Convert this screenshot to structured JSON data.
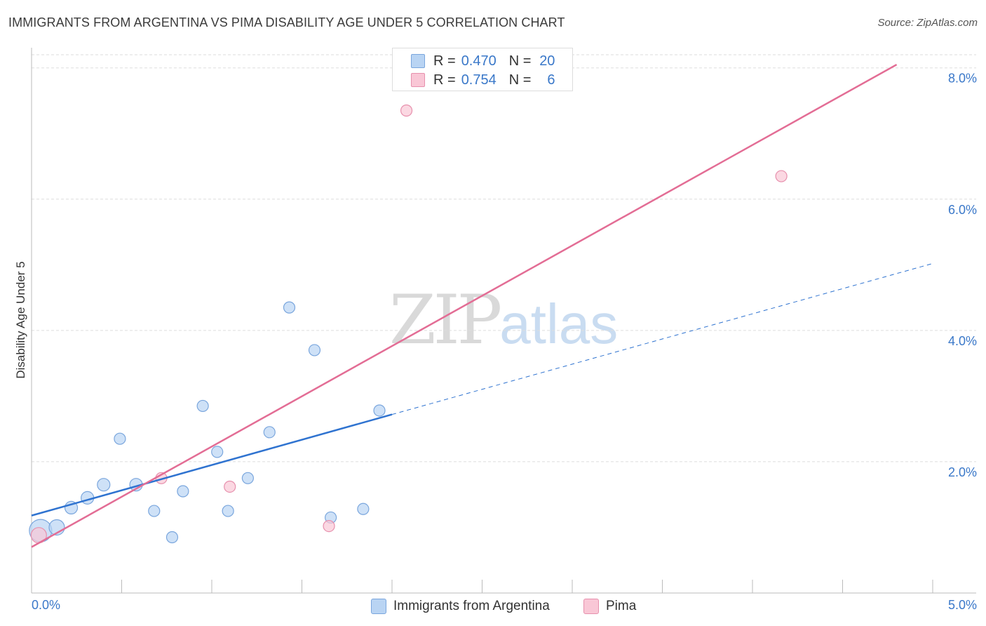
{
  "header": {
    "title": "IMMIGRANTS FROM ARGENTINA VS PIMA DISABILITY AGE UNDER 5 CORRELATION CHART",
    "source": "Source: ZipAtlas.com"
  },
  "watermark": {
    "zip": "ZIP",
    "atlas": "atlas"
  },
  "legend": {
    "rows": [
      {
        "r_label": "R =",
        "r_value": "0.470",
        "n_label": "N =",
        "n_value": "20"
      },
      {
        "r_label": "R =",
        "r_value": "0.754",
        "n_label": "N =",
        "n_value": "6"
      }
    ]
  },
  "colors": {
    "blue_fill": "#b9d4f3",
    "blue_stroke": "#7aa6dd",
    "blue_line": "#2f73d0",
    "pink_fill": "#f9c7d6",
    "pink_stroke": "#e790ad",
    "pink_line": "#e36d95",
    "tick_label": "#3a78c9",
    "grid": "#dddddd"
  },
  "chart_data": {
    "type": "scatter",
    "title": "IMMIGRANTS FROM ARGENTINA VS PIMA DISABILITY AGE UNDER 5 CORRELATION CHART",
    "xlabel": "",
    "ylabel": "Disability Age Under 5",
    "xlim": [
      0,
      5
    ],
    "ylim": [
      0,
      8.2
    ],
    "x_tick_labels": [
      "0.0%",
      "5.0%"
    ],
    "y_ticks": [
      2,
      4,
      6,
      8
    ],
    "y_tick_labels": [
      "2.0%",
      "4.0%",
      "6.0%",
      "8.0%"
    ],
    "grid": true,
    "series": [
      {
        "name": "Immigrants from Argentina",
        "r": 0.47,
        "n": 20,
        "points": [
          {
            "x": 0.05,
            "y": 0.95,
            "size": 16
          },
          {
            "x": 0.14,
            "y": 1.0,
            "size": 11
          },
          {
            "x": 0.22,
            "y": 1.3,
            "size": 9
          },
          {
            "x": 0.31,
            "y": 1.45,
            "size": 9
          },
          {
            "x": 0.4,
            "y": 1.65,
            "size": 9
          },
          {
            "x": 0.49,
            "y": 2.35,
            "size": 8
          },
          {
            "x": 0.58,
            "y": 1.65,
            "size": 9
          },
          {
            "x": 0.68,
            "y": 1.25,
            "size": 8
          },
          {
            "x": 0.78,
            "y": 0.85,
            "size": 8
          },
          {
            "x": 0.84,
            "y": 1.55,
            "size": 8
          },
          {
            "x": 0.95,
            "y": 2.85,
            "size": 8
          },
          {
            "x": 1.03,
            "y": 2.15,
            "size": 8
          },
          {
            "x": 1.09,
            "y": 1.25,
            "size": 8
          },
          {
            "x": 1.2,
            "y": 1.75,
            "size": 8
          },
          {
            "x": 1.32,
            "y": 2.45,
            "size": 8
          },
          {
            "x": 1.43,
            "y": 4.35,
            "size": 8
          },
          {
            "x": 1.57,
            "y": 3.7,
            "size": 8
          },
          {
            "x": 1.66,
            "y": 1.15,
            "size": 8
          },
          {
            "x": 1.84,
            "y": 1.28,
            "size": 8
          },
          {
            "x": 1.93,
            "y": 2.78,
            "size": 8
          }
        ],
        "trendline": {
          "x": [
            0,
            2.0
          ],
          "y": [
            1.18,
            2.72
          ],
          "extended_x": [
            2.0,
            5.0
          ],
          "extended_y": [
            2.72,
            5.02
          ]
        }
      },
      {
        "name": "Pima",
        "r": 0.754,
        "n": 6,
        "points": [
          {
            "x": 0.04,
            "y": 0.88,
            "size": 11
          },
          {
            "x": 0.72,
            "y": 1.75,
            "size": 8
          },
          {
            "x": 1.1,
            "y": 1.62,
            "size": 8
          },
          {
            "x": 1.65,
            "y": 1.02,
            "size": 8
          },
          {
            "x": 2.08,
            "y": 7.35,
            "size": 8
          },
          {
            "x": 4.16,
            "y": 6.35,
            "size": 8
          }
        ],
        "trendline": {
          "x": [
            0,
            4.8
          ],
          "y": [
            0.7,
            8.05
          ]
        }
      }
    ]
  }
}
